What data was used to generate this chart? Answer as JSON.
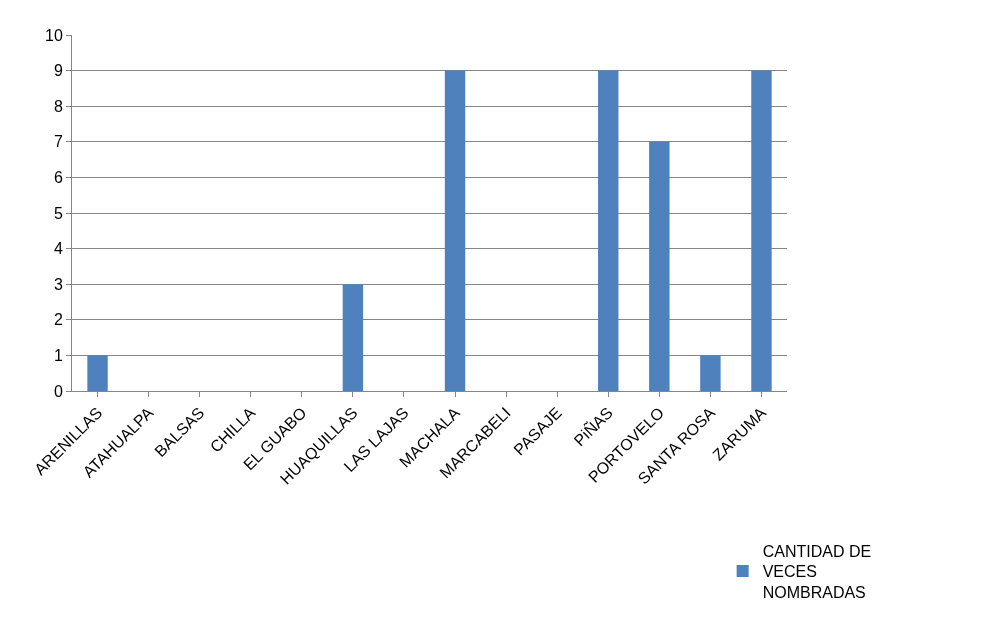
{
  "chart_data": {
    "type": "bar",
    "categories": [
      "ARENILLAS",
      "ATAHUALPA",
      "BALSAS",
      "CHILLA",
      "EL GUABO",
      "HUAQUILLAS",
      "LAS LAJAS",
      "MACHALA",
      "MARCABELI",
      "PASAJE",
      "PiÑAS",
      "PORTOVELO",
      "SANTA ROSA",
      "ZARUMA"
    ],
    "series": [
      {
        "name": "CANTIDAD DE VECES NOMBRADAS",
        "color": "#4f81bd",
        "values": [
          1,
          0,
          0,
          0,
          0,
          3,
          0,
          9,
          0,
          0,
          9,
          7,
          1,
          9
        ]
      }
    ],
    "ylim": [
      0,
      10
    ],
    "yticks": [
      0,
      1,
      2,
      3,
      4,
      5,
      6,
      7,
      8,
      9,
      10
    ],
    "grid": "y",
    "legend": "bottom right"
  }
}
